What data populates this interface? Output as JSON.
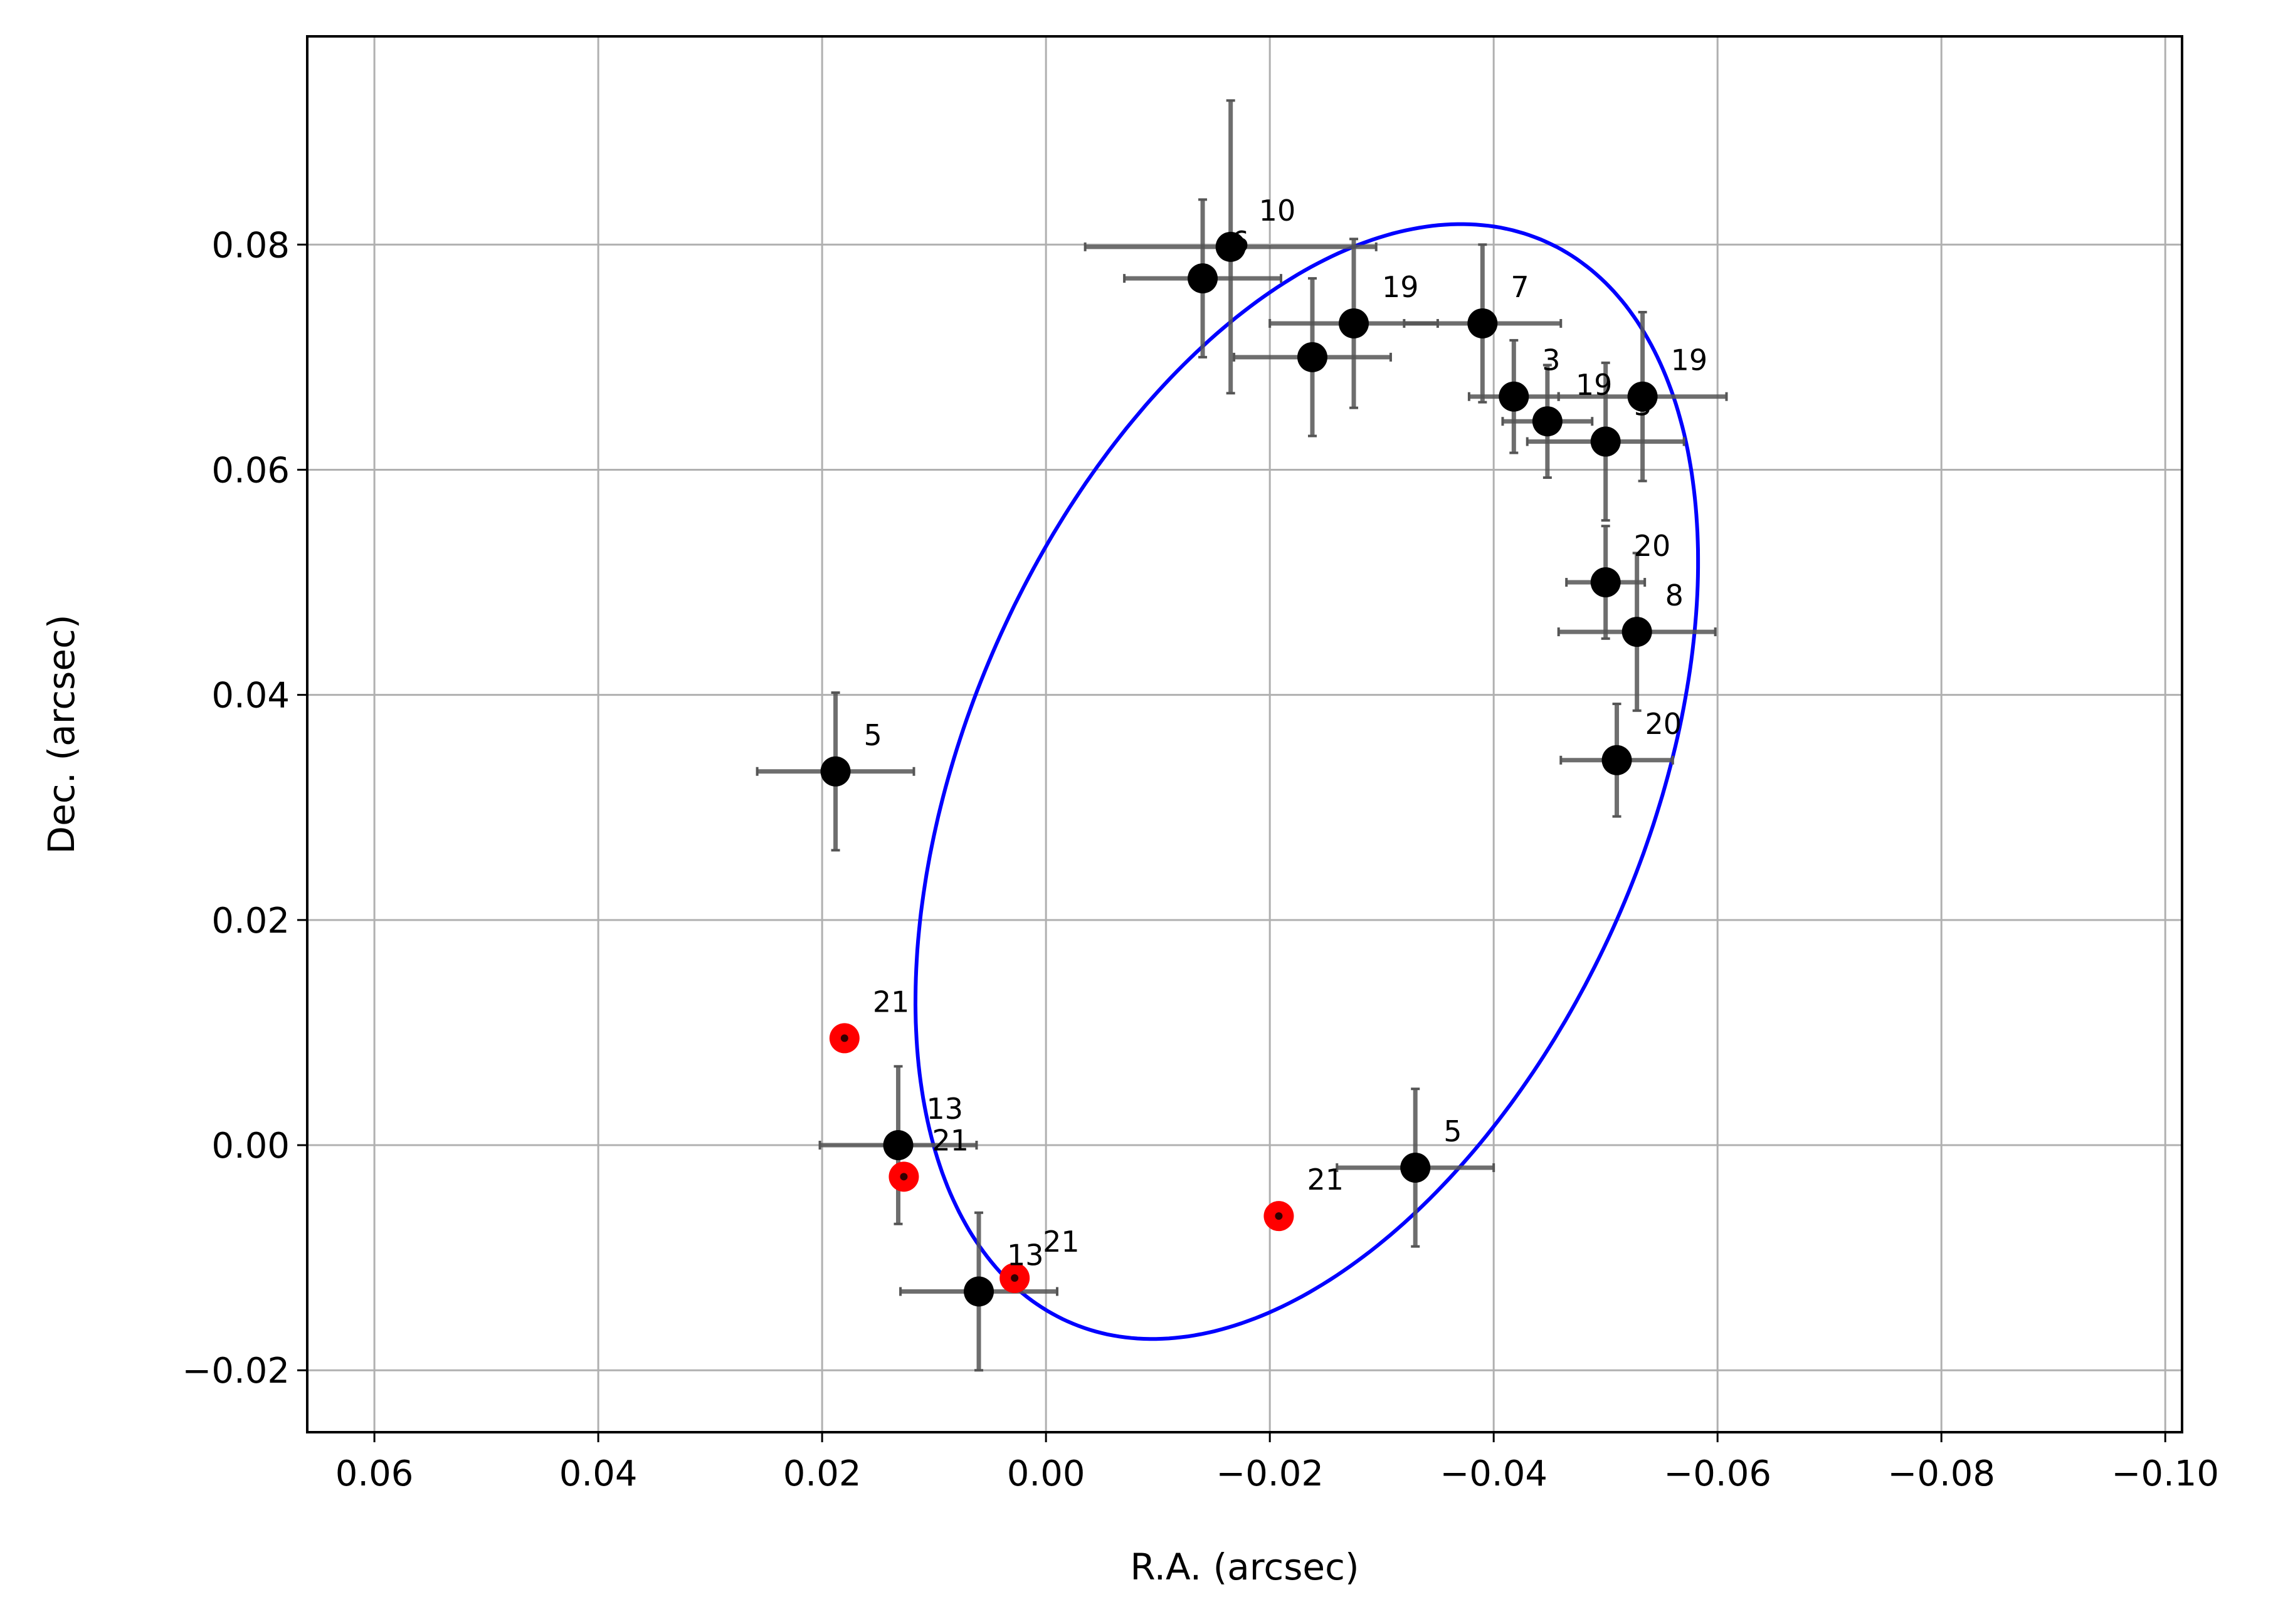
{
  "chart_data": {
    "type": "scatter",
    "xlabel": "R.A. (arcsec)",
    "ylabel": "Dec. (arcsec)",
    "xlim": [
      0.066,
      -0.1015
    ],
    "ylim": [
      -0.0255,
      0.0985
    ],
    "x_ticks": [
      0.06,
      0.04,
      0.02,
      0.0,
      -0.02,
      -0.04,
      -0.06,
      -0.08,
      -0.1
    ],
    "x_tick_labels": [
      "0.06",
      "0.04",
      "0.02",
      "0.00",
      "−0.02",
      "−0.04",
      "−0.06",
      "−0.08",
      "−0.10"
    ],
    "y_ticks": [
      -0.02,
      0.0,
      0.02,
      0.04,
      0.06,
      0.08
    ],
    "y_tick_labels": [
      "−0.02",
      "0.00",
      "0.02",
      "0.04",
      "0.06",
      "0.08"
    ],
    "grid": true,
    "colors": {
      "observed": "#000000",
      "predicted": "#ff0000",
      "orbit": "#0000ff",
      "errorbar": "#555555",
      "grid": "#b0b0b0"
    },
    "orbit": {
      "type": "ellipse",
      "center": [
        -0.0233,
        0.0323
      ],
      "semi_axes": [
        0.0303,
        0.0525
      ],
      "rotation_deg": 24
    },
    "series": [
      {
        "kind": "observed",
        "points": [
          {
            "x": -0.0165,
            "y": 0.0798,
            "xerr": 0.013,
            "yerr": 0.013,
            "label": "10"
          },
          {
            "x": -0.014,
            "y": 0.077,
            "xerr": 0.007,
            "yerr": 0.007,
            "label": "6"
          },
          {
            "x": -0.0275,
            "y": 0.073,
            "xerr": 0.0075,
            "yerr": 0.0075,
            "label": "19"
          },
          {
            "x": -0.0238,
            "y": 0.07,
            "xerr": 0.007,
            "yerr": 0.007,
            "label": "4"
          },
          {
            "x": -0.039,
            "y": 0.073,
            "xerr": 0.007,
            "yerr": 0.007,
            "label": "7"
          },
          {
            "x": -0.0418,
            "y": 0.0665,
            "xerr": 0.004,
            "yerr": 0.005,
            "label": "3"
          },
          {
            "x": -0.0448,
            "y": 0.0643,
            "xerr": 0.004,
            "yerr": 0.005,
            "label": "19"
          },
          {
            "x": -0.0533,
            "y": 0.0665,
            "xerr": 0.0075,
            "yerr": 0.0075,
            "label": "19"
          },
          {
            "x": -0.05,
            "y": 0.0625,
            "xerr": 0.007,
            "yerr": 0.007,
            "label": "5"
          },
          {
            "x": -0.05,
            "y": 0.05,
            "xerr": 0.0035,
            "yerr": 0.005,
            "label": "20"
          },
          {
            "x": -0.0528,
            "y": 0.0456,
            "xerr": 0.007,
            "yerr": 0.007,
            "label": "8"
          },
          {
            "x": -0.051,
            "y": 0.0342,
            "xerr": 0.005,
            "yerr": 0.005,
            "label": "20"
          },
          {
            "x": 0.0188,
            "y": 0.0332,
            "xerr": 0.007,
            "yerr": 0.007,
            "label": "5"
          },
          {
            "x": 0.0132,
            "y": 0.0,
            "xerr": 0.007,
            "yerr": 0.007,
            "label": "13"
          },
          {
            "x": -0.033,
            "y": -0.002,
            "xerr": 0.007,
            "yerr": 0.007,
            "label": "5"
          },
          {
            "x": 0.006,
            "y": -0.013,
            "xerr": 0.007,
            "yerr": 0.007,
            "label": "13"
          }
        ]
      },
      {
        "kind": "predicted",
        "points": [
          {
            "x": 0.018,
            "y": 0.0095,
            "label": "21"
          },
          {
            "x": 0.0127,
            "y": -0.0028,
            "label": "21"
          },
          {
            "x": 0.0028,
            "y": -0.0118,
            "label": "21"
          },
          {
            "x": -0.0208,
            "y": -0.0063,
            "label": "21"
          }
        ]
      }
    ]
  }
}
